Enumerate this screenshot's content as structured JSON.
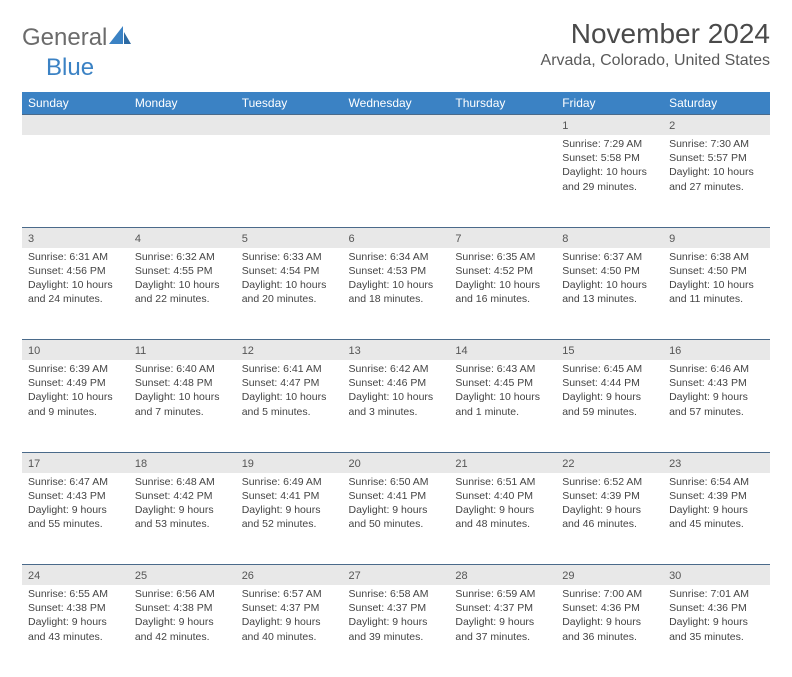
{
  "logo": {
    "text1": "General",
    "text2": "Blue"
  },
  "title": "November 2024",
  "location": "Arvada, Colorado, United States",
  "colors": {
    "header_bg": "#3b82c4",
    "header_text": "#ffffff",
    "daynum_bg": "#e8e8e8",
    "border": "#4a6a8a",
    "body_text": "#444444",
    "title_text": "#4a4a4a"
  },
  "weekdays": [
    "Sunday",
    "Monday",
    "Tuesday",
    "Wednesday",
    "Thursday",
    "Friday",
    "Saturday"
  ],
  "weeks": [
    [
      null,
      null,
      null,
      null,
      null,
      {
        "n": "1",
        "sr": "Sunrise: 7:29 AM",
        "ss": "Sunset: 5:58 PM",
        "dl1": "Daylight: 10 hours",
        "dl2": "and 29 minutes."
      },
      {
        "n": "2",
        "sr": "Sunrise: 7:30 AM",
        "ss": "Sunset: 5:57 PM",
        "dl1": "Daylight: 10 hours",
        "dl2": "and 27 minutes."
      }
    ],
    [
      {
        "n": "3",
        "sr": "Sunrise: 6:31 AM",
        "ss": "Sunset: 4:56 PM",
        "dl1": "Daylight: 10 hours",
        "dl2": "and 24 minutes."
      },
      {
        "n": "4",
        "sr": "Sunrise: 6:32 AM",
        "ss": "Sunset: 4:55 PM",
        "dl1": "Daylight: 10 hours",
        "dl2": "and 22 minutes."
      },
      {
        "n": "5",
        "sr": "Sunrise: 6:33 AM",
        "ss": "Sunset: 4:54 PM",
        "dl1": "Daylight: 10 hours",
        "dl2": "and 20 minutes."
      },
      {
        "n": "6",
        "sr": "Sunrise: 6:34 AM",
        "ss": "Sunset: 4:53 PM",
        "dl1": "Daylight: 10 hours",
        "dl2": "and 18 minutes."
      },
      {
        "n": "7",
        "sr": "Sunrise: 6:35 AM",
        "ss": "Sunset: 4:52 PM",
        "dl1": "Daylight: 10 hours",
        "dl2": "and 16 minutes."
      },
      {
        "n": "8",
        "sr": "Sunrise: 6:37 AM",
        "ss": "Sunset: 4:50 PM",
        "dl1": "Daylight: 10 hours",
        "dl2": "and 13 minutes."
      },
      {
        "n": "9",
        "sr": "Sunrise: 6:38 AM",
        "ss": "Sunset: 4:50 PM",
        "dl1": "Daylight: 10 hours",
        "dl2": "and 11 minutes."
      }
    ],
    [
      {
        "n": "10",
        "sr": "Sunrise: 6:39 AM",
        "ss": "Sunset: 4:49 PM",
        "dl1": "Daylight: 10 hours",
        "dl2": "and 9 minutes."
      },
      {
        "n": "11",
        "sr": "Sunrise: 6:40 AM",
        "ss": "Sunset: 4:48 PM",
        "dl1": "Daylight: 10 hours",
        "dl2": "and 7 minutes."
      },
      {
        "n": "12",
        "sr": "Sunrise: 6:41 AM",
        "ss": "Sunset: 4:47 PM",
        "dl1": "Daylight: 10 hours",
        "dl2": "and 5 minutes."
      },
      {
        "n": "13",
        "sr": "Sunrise: 6:42 AM",
        "ss": "Sunset: 4:46 PM",
        "dl1": "Daylight: 10 hours",
        "dl2": "and 3 minutes."
      },
      {
        "n": "14",
        "sr": "Sunrise: 6:43 AM",
        "ss": "Sunset: 4:45 PM",
        "dl1": "Daylight: 10 hours",
        "dl2": "and 1 minute."
      },
      {
        "n": "15",
        "sr": "Sunrise: 6:45 AM",
        "ss": "Sunset: 4:44 PM",
        "dl1": "Daylight: 9 hours",
        "dl2": "and 59 minutes."
      },
      {
        "n": "16",
        "sr": "Sunrise: 6:46 AM",
        "ss": "Sunset: 4:43 PM",
        "dl1": "Daylight: 9 hours",
        "dl2": "and 57 minutes."
      }
    ],
    [
      {
        "n": "17",
        "sr": "Sunrise: 6:47 AM",
        "ss": "Sunset: 4:43 PM",
        "dl1": "Daylight: 9 hours",
        "dl2": "and 55 minutes."
      },
      {
        "n": "18",
        "sr": "Sunrise: 6:48 AM",
        "ss": "Sunset: 4:42 PM",
        "dl1": "Daylight: 9 hours",
        "dl2": "and 53 minutes."
      },
      {
        "n": "19",
        "sr": "Sunrise: 6:49 AM",
        "ss": "Sunset: 4:41 PM",
        "dl1": "Daylight: 9 hours",
        "dl2": "and 52 minutes."
      },
      {
        "n": "20",
        "sr": "Sunrise: 6:50 AM",
        "ss": "Sunset: 4:41 PM",
        "dl1": "Daylight: 9 hours",
        "dl2": "and 50 minutes."
      },
      {
        "n": "21",
        "sr": "Sunrise: 6:51 AM",
        "ss": "Sunset: 4:40 PM",
        "dl1": "Daylight: 9 hours",
        "dl2": "and 48 minutes."
      },
      {
        "n": "22",
        "sr": "Sunrise: 6:52 AM",
        "ss": "Sunset: 4:39 PM",
        "dl1": "Daylight: 9 hours",
        "dl2": "and 46 minutes."
      },
      {
        "n": "23",
        "sr": "Sunrise: 6:54 AM",
        "ss": "Sunset: 4:39 PM",
        "dl1": "Daylight: 9 hours",
        "dl2": "and 45 minutes."
      }
    ],
    [
      {
        "n": "24",
        "sr": "Sunrise: 6:55 AM",
        "ss": "Sunset: 4:38 PM",
        "dl1": "Daylight: 9 hours",
        "dl2": "and 43 minutes."
      },
      {
        "n": "25",
        "sr": "Sunrise: 6:56 AM",
        "ss": "Sunset: 4:38 PM",
        "dl1": "Daylight: 9 hours",
        "dl2": "and 42 minutes."
      },
      {
        "n": "26",
        "sr": "Sunrise: 6:57 AM",
        "ss": "Sunset: 4:37 PM",
        "dl1": "Daylight: 9 hours",
        "dl2": "and 40 minutes."
      },
      {
        "n": "27",
        "sr": "Sunrise: 6:58 AM",
        "ss": "Sunset: 4:37 PM",
        "dl1": "Daylight: 9 hours",
        "dl2": "and 39 minutes."
      },
      {
        "n": "28",
        "sr": "Sunrise: 6:59 AM",
        "ss": "Sunset: 4:37 PM",
        "dl1": "Daylight: 9 hours",
        "dl2": "and 37 minutes."
      },
      {
        "n": "29",
        "sr": "Sunrise: 7:00 AM",
        "ss": "Sunset: 4:36 PM",
        "dl1": "Daylight: 9 hours",
        "dl2": "and 36 minutes."
      },
      {
        "n": "30",
        "sr": "Sunrise: 7:01 AM",
        "ss": "Sunset: 4:36 PM",
        "dl1": "Daylight: 9 hours",
        "dl2": "and 35 minutes."
      }
    ]
  ]
}
